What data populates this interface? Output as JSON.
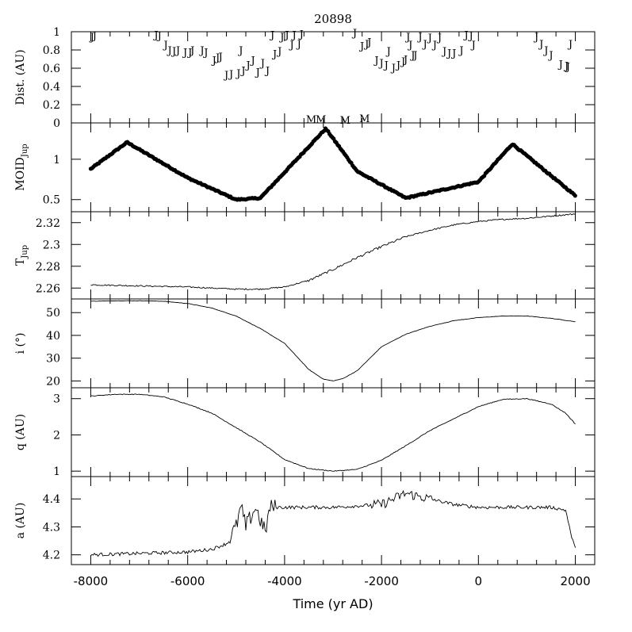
{
  "chart_data": {
    "type": "line",
    "title": "20898",
    "xlabel": "Time (yr AD)",
    "xlim": [
      -8400,
      2400
    ],
    "xticks": [
      -8000,
      -6000,
      -4000,
      -2000,
      0,
      2000
    ],
    "xtick_labels": [
      "-8000",
      "-6000",
      "-4000",
      "-2000",
      "0",
      "2000"
    ],
    "panels": [
      {
        "id": "dist",
        "type": "scatter",
        "ylabel": "Dist. (AU)",
        "ylim": [
          0,
          1
        ],
        "yticks": [
          0,
          0.2,
          0.4,
          0.6,
          0.8,
          1
        ],
        "ytick_labels": [
          "0",
          "0.2",
          "0.4",
          "0.6",
          "0.8",
          "1"
        ],
        "marker": "J",
        "points": [
          [
            -7970,
            0.95
          ],
          [
            -7920,
            0.96
          ],
          [
            -6650,
            0.97
          ],
          [
            -6580,
            0.96
          ],
          [
            -6450,
            0.86
          ],
          [
            -6370,
            0.8
          ],
          [
            -6280,
            0.79
          ],
          [
            -6200,
            0.8
          ],
          [
            -6050,
            0.78
          ],
          [
            -5950,
            0.78
          ],
          [
            -5900,
            0.8
          ],
          [
            -5700,
            0.8
          ],
          [
            -5620,
            0.78
          ],
          [
            -5450,
            0.69
          ],
          [
            -5380,
            0.72
          ],
          [
            -5320,
            0.73
          ],
          [
            -5200,
            0.53
          ],
          [
            -5100,
            0.54
          ],
          [
            -4950,
            0.55
          ],
          [
            -4900,
            0.8
          ],
          [
            -4850,
            0.58
          ],
          [
            -4750,
            0.64
          ],
          [
            -4650,
            0.69
          ],
          [
            -4550,
            0.56
          ],
          [
            -4450,
            0.66
          ],
          [
            -4350,
            0.58
          ],
          [
            -4250,
            0.97
          ],
          [
            -4200,
            0.76
          ],
          [
            -4100,
            0.79
          ],
          [
            -4050,
            0.95
          ],
          [
            -3950,
            0.97
          ],
          [
            -3850,
            0.86
          ],
          [
            -3800,
            0.97
          ],
          [
            -3700,
            0.87
          ],
          [
            -3650,
            0.98
          ],
          [
            -2550,
            0.99
          ],
          [
            -2400,
            0.85
          ],
          [
            -2300,
            0.87
          ],
          [
            -2250,
            0.89
          ],
          [
            -2100,
            0.69
          ],
          [
            -2000,
            0.66
          ],
          [
            -1900,
            0.64
          ],
          [
            -1850,
            0.79
          ],
          [
            -1750,
            0.61
          ],
          [
            -1650,
            0.64
          ],
          [
            -1550,
            0.68
          ],
          [
            -1500,
            0.7
          ],
          [
            -1450,
            0.95
          ],
          [
            -1400,
            0.86
          ],
          [
            -1350,
            0.75
          ],
          [
            -1300,
            0.75
          ],
          [
            -1200,
            0.95
          ],
          [
            -1100,
            0.87
          ],
          [
            -1000,
            0.94
          ],
          [
            -900,
            0.86
          ],
          [
            -800,
            0.94
          ],
          [
            -700,
            0.79
          ],
          [
            -600,
            0.77
          ],
          [
            -500,
            0.77
          ],
          [
            -350,
            0.8
          ],
          [
            -250,
            0.97
          ],
          [
            -150,
            0.96
          ],
          [
            -100,
            0.86
          ],
          [
            1200,
            0.95
          ],
          [
            1300,
            0.87
          ],
          [
            1400,
            0.8
          ],
          [
            1500,
            0.75
          ],
          [
            1700,
            0.65
          ],
          [
            1820,
            0.63
          ],
          [
            1850,
            0.62
          ],
          [
            1900,
            0.87
          ]
        ]
      },
      {
        "id": "moid",
        "type": "scatter",
        "ylabel": "MOID_Jup",
        "ylim": [
          0.35,
          1.45
        ],
        "yticks": [
          0.5,
          1
        ],
        "ytick_labels": [
          "0.5",
          "1"
        ],
        "marker": "dot",
        "curve": [
          [
            -8000,
            0.88
          ],
          [
            -7250,
            1.21
          ],
          [
            -6000,
            0.77
          ],
          [
            -5000,
            0.5
          ],
          [
            -4500,
            0.52
          ],
          [
            -3150,
            1.38
          ],
          [
            -2500,
            0.85
          ],
          [
            -1500,
            0.52
          ],
          [
            0,
            0.72
          ],
          [
            700,
            1.19
          ],
          [
            2000,
            0.55
          ]
        ],
        "annotation_marker": "M",
        "annotations": [
          [
            -3450,
            1.5
          ],
          [
            -3250,
            1.5
          ],
          [
            -2750,
            1.49
          ],
          [
            -2350,
            1.51
          ]
        ]
      },
      {
        "id": "tjup",
        "type": "line",
        "ylabel": "T_Jup",
        "ylim": [
          2.25,
          2.33
        ],
        "yticks": [
          2.26,
          2.28,
          2.3,
          2.32
        ],
        "ytick_labels": [
          "2.26",
          "2.28",
          "2.3",
          "2.32"
        ],
        "curve": [
          [
            -8000,
            2.263
          ],
          [
            -7000,
            2.262
          ],
          [
            -6000,
            2.261
          ],
          [
            -5000,
            2.259
          ],
          [
            -4500,
            2.259
          ],
          [
            -4000,
            2.261
          ],
          [
            -3500,
            2.267
          ],
          [
            -3000,
            2.277
          ],
          [
            -2500,
            2.288
          ],
          [
            -2000,
            2.298
          ],
          [
            -1500,
            2.307
          ],
          [
            -1000,
            2.313
          ],
          [
            -500,
            2.318
          ],
          [
            0,
            2.321
          ],
          [
            500,
            2.323
          ],
          [
            1000,
            2.324
          ],
          [
            1500,
            2.326
          ],
          [
            2000,
            2.328
          ]
        ]
      },
      {
        "id": "incl",
        "type": "line",
        "ylabel": "i (°)",
        "ylim": [
          17,
          56
        ],
        "yticks": [
          20,
          30,
          40,
          50
        ],
        "ytick_labels": [
          "20",
          "30",
          "40",
          "50"
        ],
        "curve": [
          [
            -8000,
            55
          ],
          [
            -7500,
            55.2
          ],
          [
            -7000,
            55.2
          ],
          [
            -6500,
            55
          ],
          [
            -6000,
            54
          ],
          [
            -5500,
            52
          ],
          [
            -5000,
            48.5
          ],
          [
            -4500,
            43
          ],
          [
            -4000,
            36.5
          ],
          [
            -3500,
            25
          ],
          [
            -3200,
            20.8
          ],
          [
            -3000,
            20
          ],
          [
            -2800,
            21
          ],
          [
            -2500,
            24.5
          ],
          [
            -2000,
            35
          ],
          [
            -1500,
            40.5
          ],
          [
            -1000,
            44
          ],
          [
            -500,
            46.5
          ],
          [
            0,
            47.8
          ],
          [
            500,
            48.5
          ],
          [
            1000,
            48.5
          ],
          [
            1500,
            47.5
          ],
          [
            2000,
            46
          ]
        ]
      },
      {
        "id": "q",
        "type": "line",
        "ylabel": "q (AU)",
        "ylim": [
          0.85,
          3.3
        ],
        "yticks": [
          1,
          2,
          3
        ],
        "ytick_labels": [
          "1",
          "2",
          "3"
        ],
        "curve": [
          [
            -8000,
            3.07
          ],
          [
            -7500,
            3.12
          ],
          [
            -7000,
            3.12
          ],
          [
            -6500,
            3.05
          ],
          [
            -6000,
            2.85
          ],
          [
            -5500,
            2.6
          ],
          [
            -5000,
            2.2
          ],
          [
            -4500,
            1.8
          ],
          [
            -4000,
            1.32
          ],
          [
            -3500,
            1.07
          ],
          [
            -3000,
            1.0
          ],
          [
            -2500,
            1.05
          ],
          [
            -2000,
            1.3
          ],
          [
            -1500,
            1.7
          ],
          [
            -1000,
            2.12
          ],
          [
            -500,
            2.45
          ],
          [
            0,
            2.78
          ],
          [
            500,
            2.98
          ],
          [
            1000,
            3.0
          ],
          [
            1500,
            2.85
          ],
          [
            1800,
            2.6
          ],
          [
            2000,
            2.3
          ]
        ]
      },
      {
        "id": "a",
        "type": "line",
        "ylabel": "a (AU)",
        "ylim": [
          4.165,
          4.48
        ],
        "yticks": [
          4.2,
          4.3,
          4.4
        ],
        "ytick_labels": [
          "4.2",
          "4.3",
          "4.4"
        ],
        "curve": [
          [
            -8000,
            4.2
          ],
          [
            -7000,
            4.205
          ],
          [
            -6000,
            4.21
          ],
          [
            -5500,
            4.22
          ],
          [
            -5200,
            4.24
          ],
          [
            -5000,
            4.3
          ],
          [
            -4900,
            4.37
          ],
          [
            -4800,
            4.3
          ],
          [
            -4600,
            4.37
          ],
          [
            -4400,
            4.28
          ],
          [
            -4300,
            4.37
          ],
          [
            -4000,
            4.37
          ],
          [
            -3000,
            4.37
          ],
          [
            -2000,
            4.38
          ],
          [
            -1500,
            4.42
          ],
          [
            -1000,
            4.4
          ],
          [
            -500,
            4.38
          ],
          [
            0,
            4.37
          ],
          [
            1000,
            4.37
          ],
          [
            1500,
            4.37
          ],
          [
            1800,
            4.36
          ],
          [
            1900,
            4.28
          ],
          [
            2000,
            4.22
          ]
        ]
      }
    ]
  }
}
